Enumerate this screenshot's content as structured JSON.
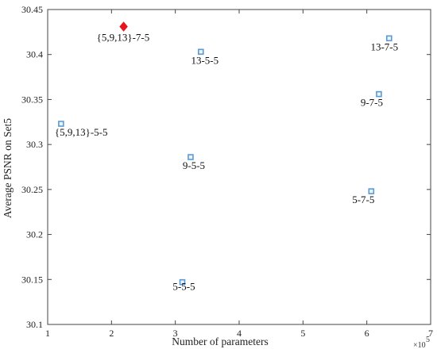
{
  "chart_data": {
    "type": "scatter",
    "title": "",
    "xlabel": "Number of parameters",
    "ylabel": "Average PSNR on Set5",
    "x_multiplier_label": "×10",
    "x_multiplier_exponent": "5",
    "xlim": [
      1,
      7
    ],
    "ylim": [
      30.1,
      30.45
    ],
    "xticks": [
      1,
      2,
      3,
      4,
      5,
      6,
      7
    ],
    "yticks": [
      30.1,
      30.15,
      30.2,
      30.25,
      30.3,
      30.35,
      30.4,
      30.45
    ],
    "xtick_labels": [
      "1",
      "2",
      "3",
      "4",
      "5",
      "6",
      "7"
    ],
    "ytick_labels": [
      "30.1",
      "30.15",
      "30.2",
      "30.25",
      "30.3",
      "30.35",
      "30.4",
      "30.45"
    ],
    "grid": false,
    "points": [
      {
        "label": "{5,9,13}-7-5",
        "x": 2.19,
        "y": 30.431,
        "marker": "diamond",
        "color": "#e8141c"
      },
      {
        "label": "13-5-5",
        "x": 3.4,
        "y": 30.403,
        "marker": "square",
        "color": "#5b9bd5"
      },
      {
        "label": "13-7-5",
        "x": 6.35,
        "y": 30.418,
        "marker": "square",
        "color": "#5b9bd5"
      },
      {
        "label": "9-7-5",
        "x": 6.19,
        "y": 30.356,
        "marker": "square",
        "color": "#5b9bd5"
      },
      {
        "label": "{5,9,13}-5-5",
        "x": 1.21,
        "y": 30.323,
        "marker": "square",
        "color": "#5b9bd5"
      },
      {
        "label": "9-5-5",
        "x": 3.24,
        "y": 30.286,
        "marker": "square",
        "color": "#5b9bd5"
      },
      {
        "label": "5-7-5",
        "x": 6.07,
        "y": 30.248,
        "marker": "square",
        "color": "#5b9bd5"
      },
      {
        "label": "5-5-5",
        "x": 3.11,
        "y": 30.147,
        "marker": "square",
        "color": "#5b9bd5"
      }
    ]
  }
}
